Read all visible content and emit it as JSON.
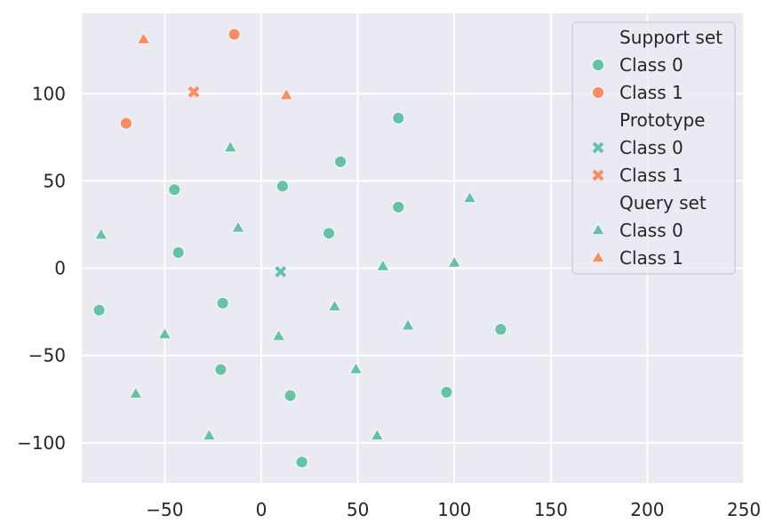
{
  "chart_data": {
    "type": "scatter",
    "title": "",
    "xlabel": "",
    "ylabel": "",
    "xlim": [
      -93,
      250
    ],
    "ylim": [
      -123,
      146
    ],
    "xticks": [
      -50,
      0,
      50,
      100,
      150,
      200,
      250
    ],
    "yticks": [
      -100,
      -50,
      0,
      50,
      100
    ],
    "xtick_labels": [
      "−50",
      "0",
      "50",
      "100",
      "150",
      "200",
      "250"
    ],
    "ytick_labels": [
      "−100",
      "−50",
      "0",
      "50",
      "100"
    ],
    "grid": true,
    "background_color": "#eaeaf2",
    "legend_position": "top-right",
    "colors": {
      "class0": "#66c2a5",
      "class1": "#fc8d62"
    },
    "legend": [
      {
        "label": "Support set",
        "type": "header"
      },
      {
        "label": "Class 0",
        "marker": "circle",
        "color": "#66c2a5"
      },
      {
        "label": "Class 1",
        "marker": "circle",
        "color": "#fc8d62"
      },
      {
        "label": "Prototype",
        "type": "header"
      },
      {
        "label": "Class 0",
        "marker": "x",
        "color": "#66c2a5"
      },
      {
        "label": "Class 1",
        "marker": "x",
        "color": "#fc8d62"
      },
      {
        "label": "Query set",
        "type": "header"
      },
      {
        "label": "Class 0",
        "marker": "triangle",
        "color": "#66c2a5"
      },
      {
        "label": "Class 1",
        "marker": "triangle",
        "color": "#fc8d62"
      }
    ],
    "series": [
      {
        "name": "Support set Class 0",
        "marker": "circle",
        "color": "#66c2a5",
        "points": [
          [
            71,
            86
          ],
          [
            41,
            61
          ],
          [
            11,
            47
          ],
          [
            -45,
            45
          ],
          [
            71,
            35
          ],
          [
            35,
            20
          ],
          [
            -43,
            9
          ],
          [
            -84,
            -24
          ],
          [
            -20,
            -20
          ],
          [
            124,
            -35
          ],
          [
            -21,
            -58
          ],
          [
            15,
            -73
          ],
          [
            96,
            -71
          ],
          [
            21,
            -111
          ]
        ]
      },
      {
        "name": "Support set Class 1",
        "marker": "circle",
        "color": "#fc8d62",
        "points": [
          [
            -14,
            134
          ],
          [
            -70,
            83
          ]
        ]
      },
      {
        "name": "Prototype Class 0",
        "marker": "x",
        "color": "#66c2a5",
        "points": [
          [
            10,
            -2
          ]
        ]
      },
      {
        "name": "Prototype Class 1",
        "marker": "x",
        "color": "#fc8d62",
        "points": [
          [
            -35,
            101
          ]
        ]
      },
      {
        "name": "Query set Class 0",
        "marker": "triangle",
        "color": "#66c2a5",
        "points": [
          [
            -16,
            69
          ],
          [
            108,
            40
          ],
          [
            -83,
            19
          ],
          [
            -12,
            23
          ],
          [
            63,
            1
          ],
          [
            100,
            3
          ],
          [
            38,
            -22
          ],
          [
            76,
            -33
          ],
          [
            -50,
            -38
          ],
          [
            9,
            -39
          ],
          [
            -65,
            -72
          ],
          [
            49,
            -58
          ],
          [
            -27,
            -96
          ],
          [
            60,
            -96
          ]
        ]
      },
      {
        "name": "Query set Class 1",
        "marker": "triangle",
        "color": "#fc8d62",
        "points": [
          [
            -61,
            131
          ],
          [
            13,
            99
          ]
        ]
      }
    ]
  }
}
